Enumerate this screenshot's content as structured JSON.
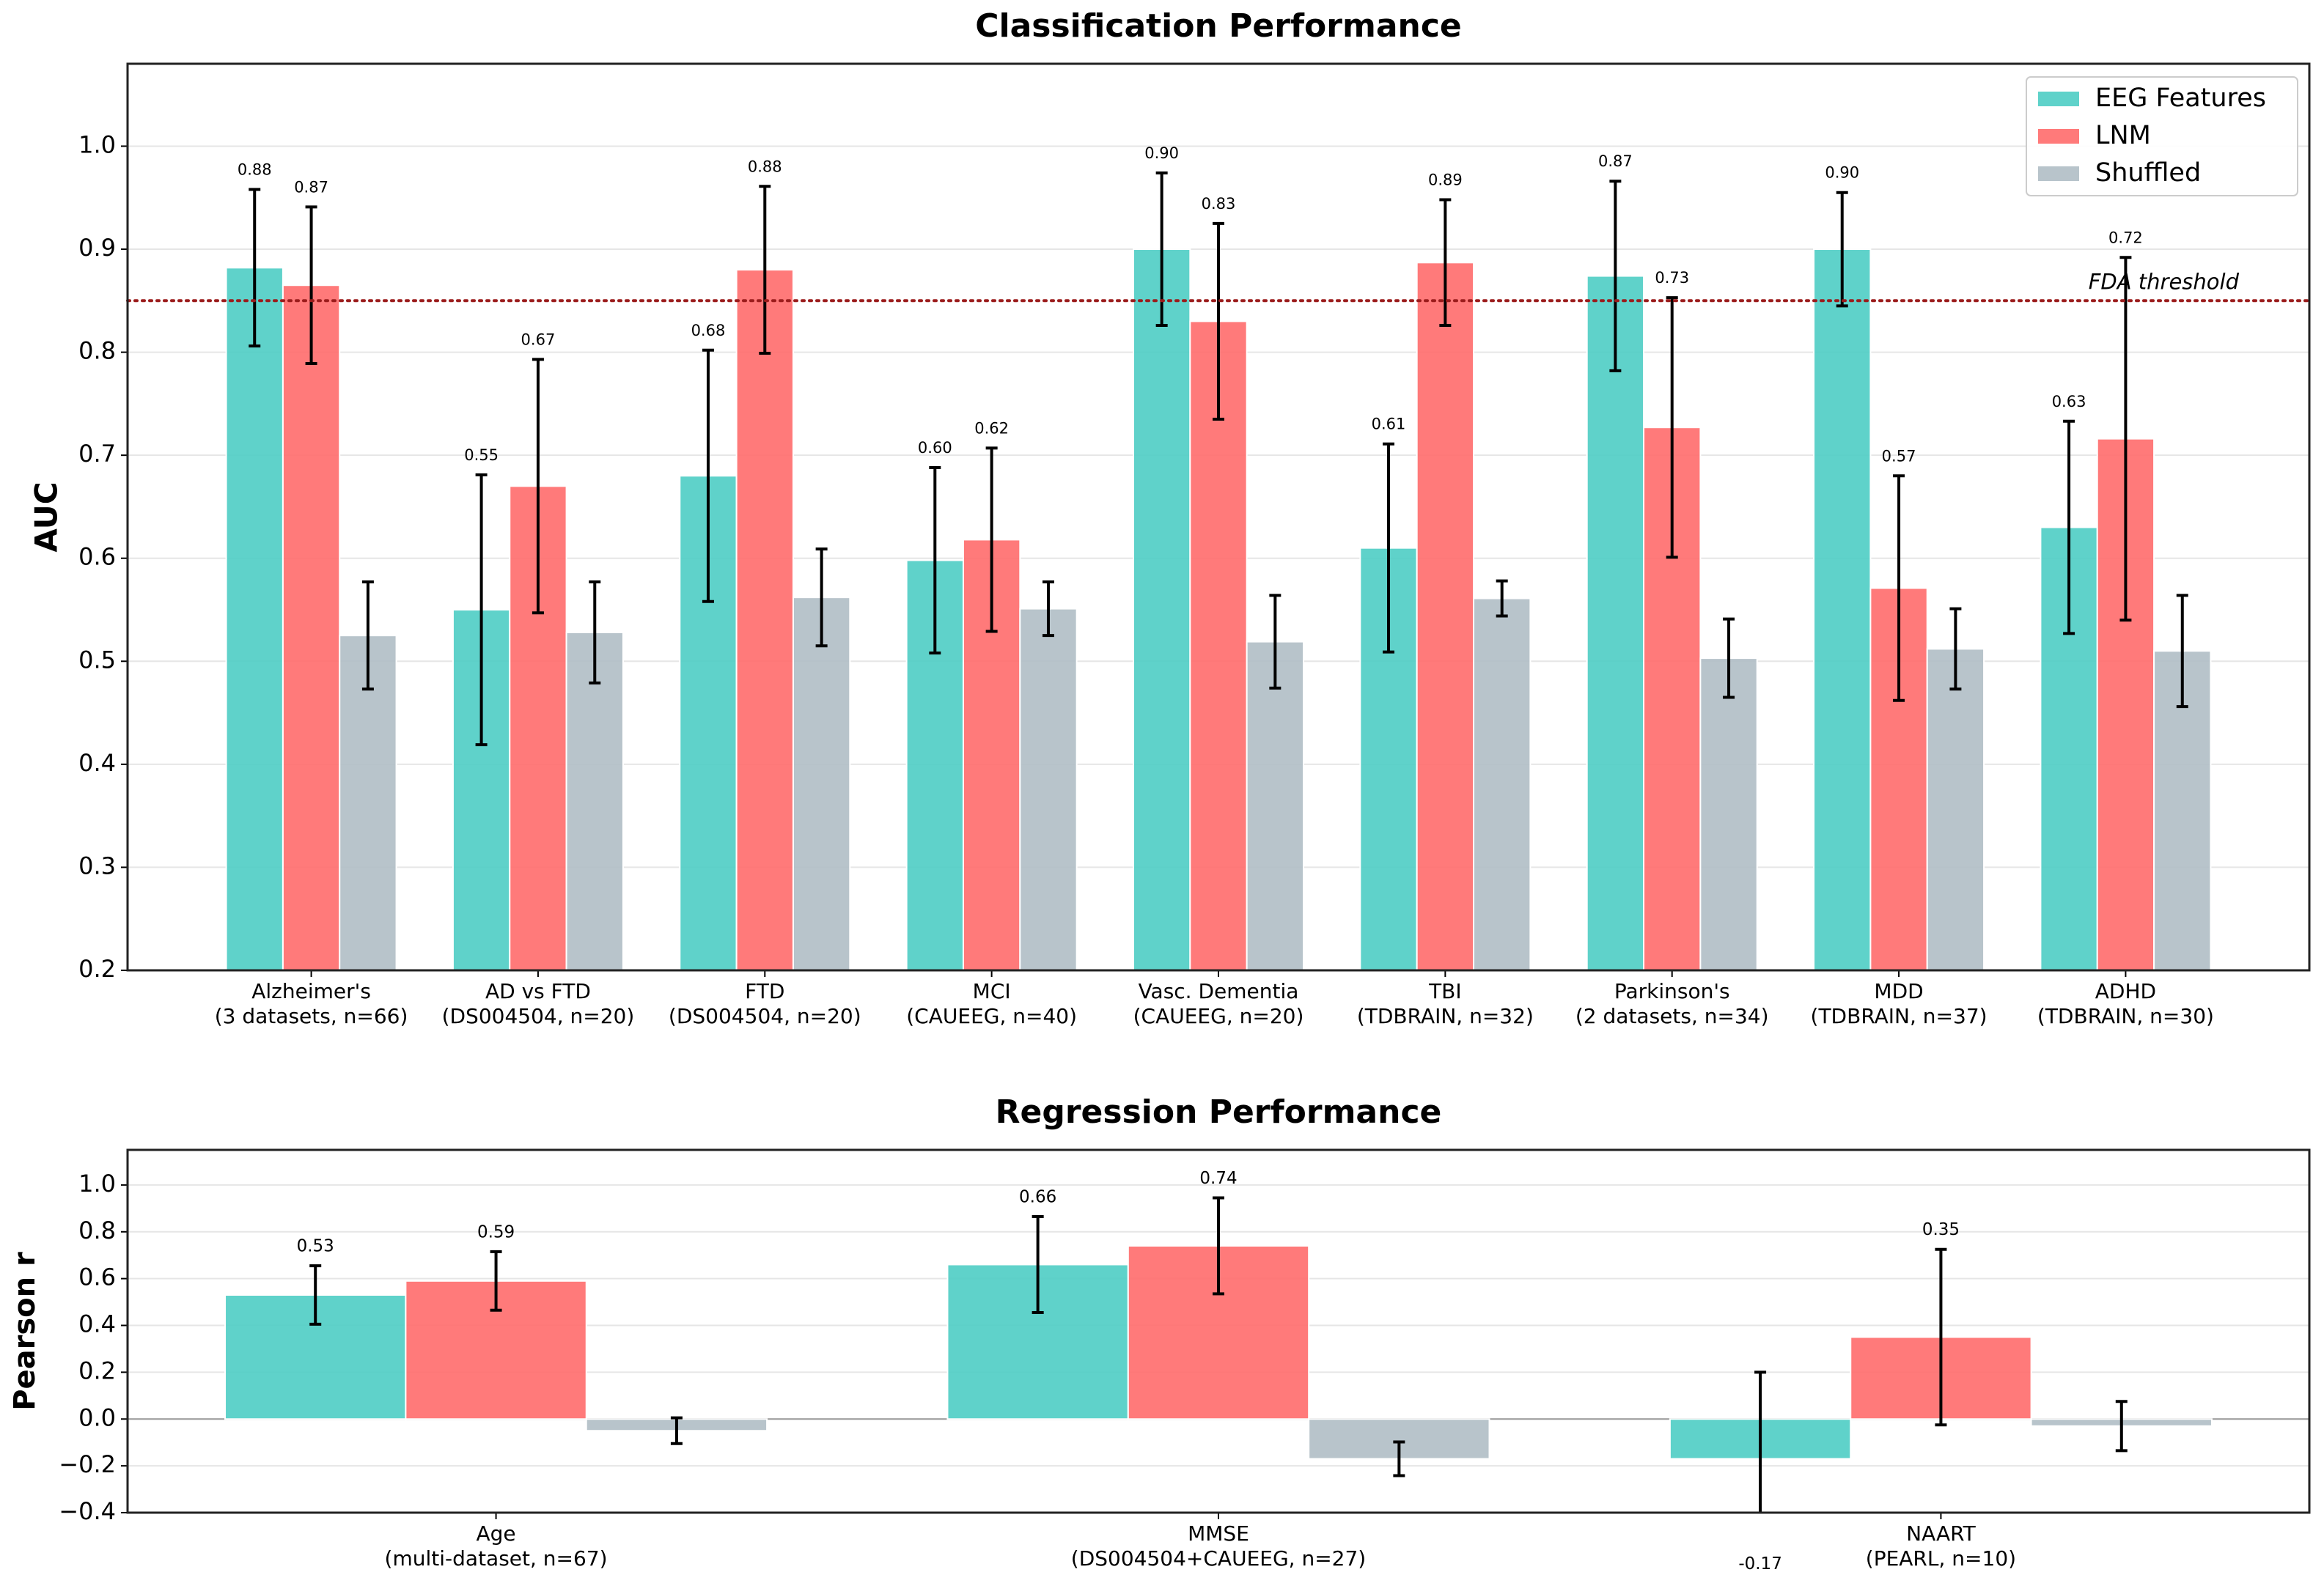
{
  "chart_data": [
    {
      "type": "bar",
      "title": "Classification Performance",
      "y_label": "AUC",
      "categories": [
        [
          "Alzheimer's",
          "(3 datasets, n=66)"
        ],
        [
          "AD vs FTD",
          "(DS004504, n=20)"
        ],
        [
          "FTD",
          "(DS004504, n=20)"
        ],
        [
          "MCI",
          "(CAUEEG, n=40)"
        ],
        [
          "Vasc. Dementia",
          "(CAUEEG, n=20)"
        ],
        [
          "TBI",
          "(TDBRAIN, n=32)"
        ],
        [
          "Parkinson's",
          "(2 datasets, n=34)"
        ],
        [
          "MDD",
          "(TDBRAIN, n=37)"
        ],
        [
          "ADHD",
          "(TDBRAIN, n=30)"
        ]
      ],
      "series": [
        {
          "name": "EEG Features",
          "color": "#4ecdc4",
          "values": [
            0.882,
            0.55,
            0.68,
            0.598,
            0.9,
            0.61,
            0.874,
            0.9,
            0.63
          ],
          "value_labels": [
            "0.88",
            "0.55",
            "0.68",
            "0.60",
            "0.90",
            "0.61",
            "0.87",
            "0.90",
            "0.63"
          ],
          "errors": [
            0.076,
            0.131,
            0.122,
            0.09,
            0.074,
            0.101,
            0.092,
            0.055,
            0.103
          ]
        },
        {
          "name": "LNM",
          "color": "#ff6b6b",
          "values": [
            0.865,
            0.67,
            0.88,
            0.618,
            0.83,
            0.887,
            0.727,
            0.571,
            0.716
          ],
          "value_labels": [
            "0.87",
            "0.67",
            "0.88",
            "0.62",
            "0.83",
            "0.89",
            "0.73",
            "0.57",
            "0.72"
          ],
          "errors": [
            0.076,
            0.123,
            0.081,
            0.089,
            0.095,
            0.061,
            0.126,
            0.109,
            0.176
          ]
        },
        {
          "name": "Shuffled",
          "color": "#b0bec5",
          "values": [
            0.525,
            0.528,
            0.562,
            0.551,
            0.519,
            0.561,
            0.503,
            0.512,
            0.51
          ],
          "errors": [
            0.052,
            0.049,
            0.047,
            0.026,
            0.045,
            0.017,
            0.038,
            0.039,
            0.054
          ]
        }
      ],
      "ylim": [
        0.2,
        1.08
      ],
      "yticks": [
        0.2,
        0.3,
        0.4,
        0.5,
        0.6,
        0.7,
        0.8,
        0.9,
        {
          "value": 1,
          "label": "1.0"
        }
      ],
      "grid": true,
      "legend": "upper right",
      "hline": {
        "value": 0.85,
        "label": "FDA threshold",
        "color": "#9b1c1c"
      }
    },
    {
      "type": "bar",
      "title": "Regression Performance",
      "y_label": "Pearson r",
      "categories": [
        [
          "Age",
          "(multi-dataset, n=67)"
        ],
        [
          "MMSE",
          "(DS004504+CAUEEG, n=27)"
        ],
        [
          "NAART",
          "(PEARL, n=10)"
        ]
      ],
      "series": [
        {
          "name": "EEG Features",
          "color": "#4ecdc4",
          "values": [
            0.53,
            0.66,
            -0.17
          ],
          "value_labels": [
            "0.53",
            "0.66",
            "-0.17"
          ],
          "errors": [
            0.125,
            0.205,
            0.37
          ]
        },
        {
          "name": "LNM",
          "color": "#ff6b6b",
          "values": [
            0.59,
            0.74,
            0.35
          ],
          "value_labels": [
            "0.59",
            "0.74",
            "0.35"
          ],
          "errors": [
            0.125,
            0.205,
            0.375
          ]
        },
        {
          "name": "Shuffled",
          "color": "#b0bec5",
          "values": [
            -0.05,
            -0.17,
            -0.03
          ],
          "errors": [
            0.055,
            0.072,
            0.105
          ]
        }
      ],
      "ylim": [
        -0.4,
        1.15
      ],
      "yticks": [
        {
          "value": -0.4,
          "label": "−0.4"
        },
        {
          "value": -0.2,
          "label": "−0.2"
        },
        {
          "value": 0,
          "label": "0.0"
        },
        0.2,
        0.4,
        0.6,
        0.8,
        {
          "value": 1,
          "label": "1.0"
        }
      ],
      "grid": true
    }
  ]
}
